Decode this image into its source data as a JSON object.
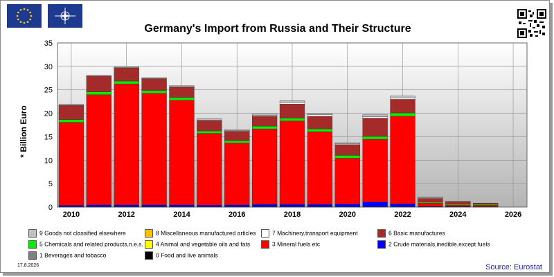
{
  "header": {
    "eu_flag_icon": "eu-flag-icon",
    "nato_flag_icon": "nato-flag-icon",
    "qr_icon": "qr-code-icon"
  },
  "footer": {
    "date": "17.8.2026",
    "source": "Source: Eurostat"
  },
  "colors": {
    "0 Food and live animals": "#000000",
    "1 Beverages and tobacco": "#808080",
    "2 Crude materials,inedible,except fuels": "#0000ff",
    "3 Mineral fuels etc": "#ff0000",
    "4 Animal and vegetable oils and fats": "#ffff00",
    "5 Chemicals and related products,n.e.s.": "#00ee00",
    "6 Basic manufactures": "#a52a2a",
    "7 Machinery,transport equipment": "#ffffff",
    "8 Miscellaneous manufactured articles": "#ffc000",
    "9 Goods not classified elsewhere": "#c0c0c0"
  },
  "chart_data": {
    "type": "bar",
    "stacked": true,
    "title": "Germany's Import from Russia and Their Structure",
    "ylabel": "* Billion Euro",
    "xlabel": "",
    "ylim": [
      0,
      35
    ],
    "yticks": [
      0,
      5,
      10,
      15,
      20,
      25,
      30,
      35
    ],
    "xticks": [
      2010,
      2012,
      2014,
      2016,
      2018,
      2020,
      2022,
      2024,
      2026
    ],
    "xlim": [
      2009.5,
      2026.5
    ],
    "categories": [
      2010,
      2011,
      2012,
      2013,
      2014,
      2015,
      2016,
      2017,
      2018,
      2019,
      2020,
      2021,
      2022,
      2023,
      2024,
      2025
    ],
    "series": [
      {
        "name": "0 Food and live animals",
        "values": [
          0.05,
          0.05,
          0.05,
          0.05,
          0.05,
          0.05,
          0.05,
          0.05,
          0.05,
          0.05,
          0.05,
          0.05,
          0.05,
          0.05,
          0.05,
          0.05
        ]
      },
      {
        "name": "1 Beverages and tobacco",
        "values": [
          0.02,
          0.02,
          0.02,
          0.02,
          0.02,
          0.02,
          0.02,
          0.02,
          0.02,
          0.02,
          0.02,
          0.02,
          0.02,
          0.0,
          0.0,
          0.0
        ]
      },
      {
        "name": "2 Crude materials,inedible,except fuels",
        "values": [
          0.3,
          0.4,
          0.4,
          0.4,
          0.4,
          0.35,
          0.4,
          0.5,
          0.5,
          0.5,
          0.55,
          1.0,
          0.6,
          0.1,
          0.1,
          0.05
        ]
      },
      {
        "name": "3 Mineral fuels etc",
        "values": [
          17.7,
          23.5,
          25.8,
          23.8,
          22.3,
          15.3,
          13.2,
          16.1,
          17.8,
          15.5,
          9.8,
          13.4,
          18.7,
          0.7,
          0.3,
          0.3
        ]
      },
      {
        "name": "4 Animal and vegetable oils and fats",
        "values": [
          0.0,
          0.0,
          0.0,
          0.0,
          0.0,
          0.0,
          0.0,
          0.0,
          0.0,
          0.0,
          0.0,
          0.0,
          0.0,
          0.0,
          0.0,
          0.0
        ]
      },
      {
        "name": "5 Chemicals and related products,n.e.s.",
        "values": [
          0.6,
          0.6,
          0.6,
          0.6,
          0.6,
          0.5,
          0.5,
          0.6,
          0.6,
          0.6,
          0.6,
          0.6,
          0.7,
          0.2,
          0.2,
          0.2
        ]
      },
      {
        "name": "6 Basic manufactures",
        "values": [
          3.0,
          3.3,
          2.8,
          2.5,
          2.2,
          2.2,
          2.0,
          2.1,
          3.0,
          2.7,
          2.3,
          3.9,
          2.9,
          0.8,
          0.5,
          0.2
        ]
      },
      {
        "name": "7 Machinery,transport equipment",
        "values": [
          0.1,
          0.1,
          0.1,
          0.1,
          0.1,
          0.1,
          0.1,
          0.2,
          0.3,
          0.3,
          0.2,
          0.3,
          0.3,
          0.1,
          0.0,
          0.0
        ]
      },
      {
        "name": "8 Miscellaneous manufactured articles",
        "values": [
          0.0,
          0.0,
          0.0,
          0.0,
          0.0,
          0.0,
          0.0,
          0.0,
          0.0,
          0.0,
          0.0,
          0.0,
          0.0,
          0.0,
          0.0,
          0.0
        ]
      },
      {
        "name": "9 Goods not classified elsewhere",
        "values": [
          0.1,
          0.1,
          0.2,
          0.1,
          0.2,
          0.3,
          0.2,
          0.3,
          0.4,
          0.3,
          0.2,
          0.4,
          0.4,
          0.2,
          0.1,
          0.05
        ]
      }
    ],
    "legend": [
      "9 Goods not classified elsewhere",
      "8 Miscellaneous manufactured articles",
      "7 Machinery,transport equipment",
      "6 Basic manufactures",
      "5 Chemicals and related products,n.e.s.",
      "4 Animal and vegetable oils and fats",
      "3 Mineral fuels etc",
      "2 Crude materials,inedible,except fuels",
      "1 Beverages and tobacco",
      "0 Food and live animals"
    ],
    "legend_placement": "bottom",
    "grid": true
  }
}
